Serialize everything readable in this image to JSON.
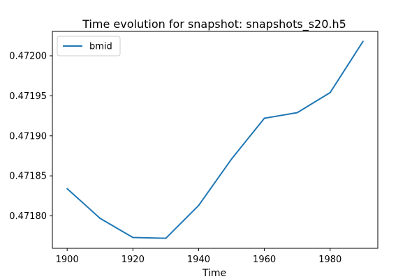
{
  "chart_data": {
    "type": "line",
    "title": "Time evolution for snapshot: snapshots_s20.h5",
    "xlabel": "Time",
    "ylabel": "",
    "x": [
      1900,
      1910,
      1920,
      1930,
      1940,
      1950,
      1960,
      1970,
      1980,
      1990
    ],
    "series": [
      {
        "name": "bmid",
        "color": "#1f77b4",
        "values": [
          0.471834,
          0.471797,
          0.471773,
          0.471772,
          0.471813,
          0.471871,
          0.471922,
          0.471929,
          0.471954,
          0.472018
        ]
      }
    ],
    "xlim": [
      1895.5,
      1994.5
    ],
    "ylim": [
      0.4717595,
      0.4720305
    ],
    "x_ticks": [
      "1900",
      "1920",
      "1940",
      "1960",
      "1980"
    ],
    "y_ticks": [
      "0.47180",
      "0.47185",
      "0.47190",
      "0.47195",
      "0.47200"
    ],
    "grid": false,
    "legend": "top-left"
  }
}
